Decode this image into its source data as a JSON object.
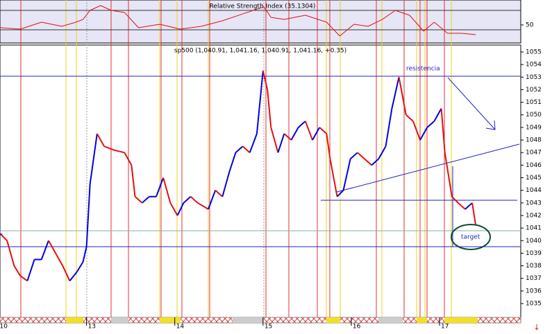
{
  "chart_data": [
    {
      "type": "line",
      "title": "Relative Strength Index (35.1304)",
      "x": [
        0.03,
        0.25,
        0.49,
        0.72,
        0.88,
        0.96,
        1.04,
        1.16,
        1.28,
        1.43,
        1.59,
        1.83,
        2.06,
        2.3,
        2.54,
        2.77,
        3.01,
        3.09,
        3.24,
        3.48,
        3.72,
        3.87,
        4.03,
        4.19,
        4.35,
        4.5,
        4.66,
        4.82,
        4.94,
        5.09,
        5.25,
        5.41
      ],
      "values": [
        45.5,
        43.3,
        54.4,
        47.7,
        54.4,
        58.8,
        73.3,
        81.1,
        73.3,
        70,
        45.5,
        51,
        43.3,
        47.7,
        56.6,
        67.7,
        78.9,
        62.2,
        58.8,
        65.5,
        54.4,
        32.1,
        51,
        47.7,
        58.8,
        73.3,
        65.5,
        39.9,
        54.4,
        36.6,
        36.6,
        34.4
      ],
      "color": "#e01010",
      "xlim": [
        0.02,
        5.92
      ],
      "ylim": [
        21,
        90
      ],
      "yticks": [
        50
      ]
    },
    {
      "type": "line",
      "title": "sp500 (1,040.91, 1,041.16, 1,040.91, 1,041.16, +0.35)",
      "x": [
        0.03,
        0.1,
        0.18,
        0.25,
        0.33,
        0.41,
        0.49,
        0.57,
        0.65,
        0.73,
        0.81,
        0.89,
        0.96,
        1.0,
        1.04,
        1.12,
        1.2,
        1.31,
        1.43,
        1.51,
        1.55,
        1.63,
        1.71,
        1.79,
        1.87,
        1.95,
        2.03,
        2.1,
        2.18,
        2.26,
        2.38,
        2.46,
        2.54,
        2.62,
        2.69,
        2.77,
        2.85,
        2.93,
        3.0,
        3.05,
        3.09,
        3.17,
        3.24,
        3.32,
        3.4,
        3.48,
        3.56,
        3.64,
        3.72,
        3.76,
        3.84,
        3.91,
        3.99,
        4.07,
        4.15,
        4.23,
        4.31,
        4.39,
        4.46,
        4.54,
        4.62,
        4.7,
        4.78,
        4.86,
        4.94,
        5.02,
        5.06,
        5.14,
        5.21,
        5.29,
        5.37,
        5.41
      ],
      "values": [
        1040.5,
        1040,
        1038,
        1037.2,
        1036.8,
        1038.5,
        1038.5,
        1040,
        1039,
        1038,
        1036.8,
        1037.5,
        1038.3,
        1039.5,
        1044.5,
        1048.5,
        1047.5,
        1047.2,
        1047,
        1046,
        1043.5,
        1043,
        1043.5,
        1043.5,
        1045,
        1043,
        1042,
        1043,
        1043.5,
        1043,
        1042.5,
        1044,
        1043.5,
        1045.5,
        1047,
        1047.5,
        1047,
        1048.5,
        1053.5,
        1052,
        1049,
        1047,
        1048.5,
        1048,
        1049,
        1049.5,
        1048,
        1049,
        1048.5,
        1046.5,
        1043.5,
        1044,
        1046.5,
        1047,
        1046.5,
        1046,
        1046.5,
        1047.5,
        1050.5,
        1053,
        1050,
        1049.5,
        1048,
        1049,
        1049.5,
        1050.5,
        1047,
        1043.5,
        1043,
        1042.5,
        1043,
        1041.2
      ],
      "up_color": "#0000e0",
      "down_color": "#e01010",
      "xlim": [
        0.02,
        5.92
      ],
      "ylim": [
        1033.9,
        1055.55
      ],
      "yticks": [
        1035,
        1036,
        1037,
        1038,
        1039,
        1040,
        1041,
        1042,
        1043,
        1044,
        1045,
        1046,
        1047,
        1048,
        1049,
        1050,
        1051,
        1052,
        1053,
        1054,
        1055
      ],
      "xticks": [
        {
          "value": 0,
          "label": "10"
        },
        {
          "value": 1,
          "label": "13"
        },
        {
          "value": 2,
          "label": "14"
        },
        {
          "value": 3,
          "label": "15"
        },
        {
          "value": 4,
          "label": "16"
        },
        {
          "value": 5,
          "label": "17"
        }
      ],
      "annotations": [
        "resistencia",
        "target"
      ]
    }
  ]
}
